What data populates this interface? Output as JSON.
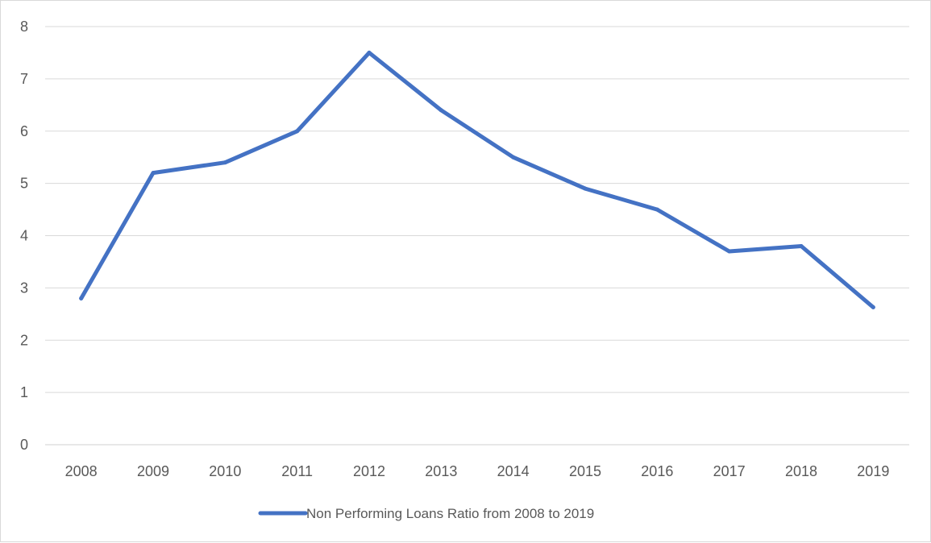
{
  "chart_data": {
    "type": "line",
    "title": "",
    "xlabel": "",
    "ylabel": "",
    "categories": [
      "2008",
      "2009",
      "2010",
      "2011",
      "2012",
      "2013",
      "2014",
      "2015",
      "2016",
      "2017",
      "2018",
      "2019"
    ],
    "series": [
      {
        "name": "Non Performing Loans Ratio from 2008 to 2019",
        "color": "#4472c4",
        "values": [
          2.8,
          5.2,
          5.4,
          6.0,
          7.5,
          6.4,
          5.5,
          4.9,
          4.5,
          3.7,
          3.8,
          2.63
        ]
      }
    ],
    "ylim": [
      0,
      8
    ],
    "yticks": [
      0,
      1,
      2,
      3,
      4,
      5,
      6,
      7,
      8
    ],
    "grid": "horizontal",
    "legend_position": "bottom"
  }
}
